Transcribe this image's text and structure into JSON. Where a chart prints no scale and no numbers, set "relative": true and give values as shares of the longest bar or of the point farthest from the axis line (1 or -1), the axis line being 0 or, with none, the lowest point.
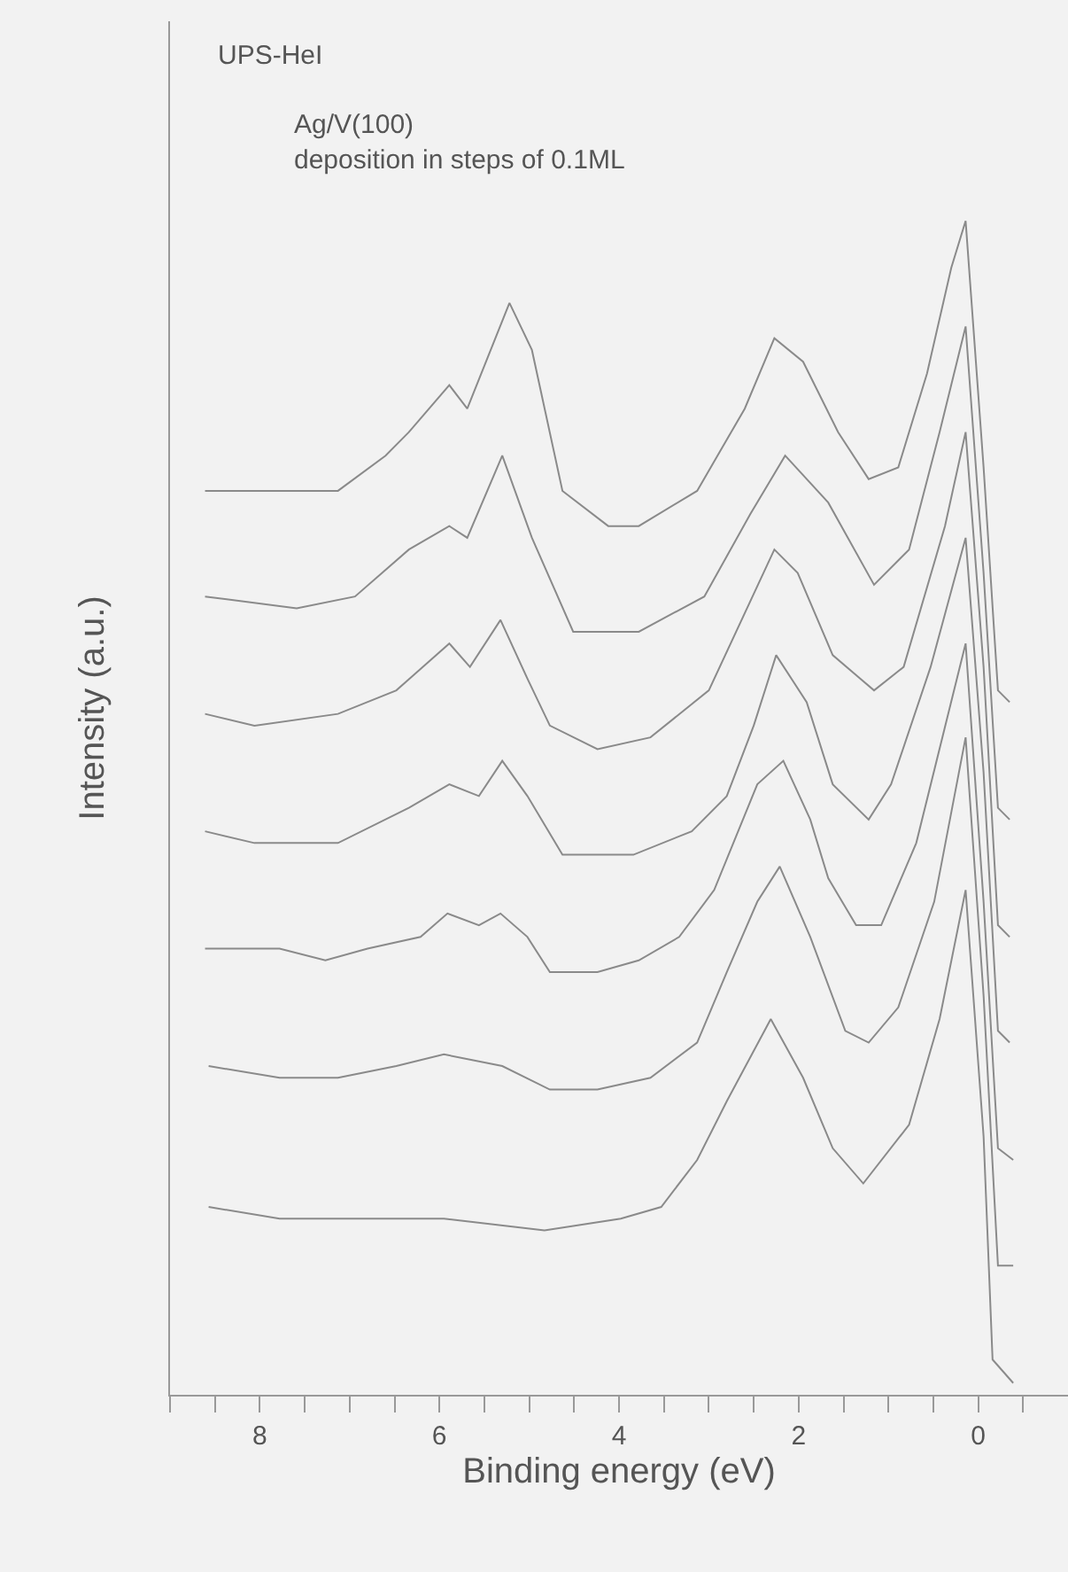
{
  "chart_data": {
    "type": "line",
    "relative": true,
    "xlabel": "Binding energy (eV)",
    "ylabel": "Intensity (a.u.)",
    "annotations": [
      "UPS-HeI",
      "Ag/V(100)",
      "deposition in steps of 0.1ML"
    ],
    "xlim": [
      9,
      -1
    ],
    "xticks": [
      {
        "value": 9,
        "label": null
      },
      {
        "value": 8.5,
        "label": null
      },
      8,
      {
        "value": 7.5,
        "label": null
      },
      {
        "value": 7,
        "label": null
      },
      {
        "value": 6.5,
        "label": null
      },
      6,
      {
        "value": 5.5,
        "label": null
      },
      {
        "value": 5,
        "label": null
      },
      {
        "value": 4.5,
        "label": null
      },
      4,
      {
        "value": 3.5,
        "label": null
      },
      {
        "value": 3,
        "label": null
      },
      {
        "value": 2.5,
        "label": null
      },
      2,
      {
        "value": 1.5,
        "label": null
      },
      {
        "value": 1,
        "label": null
      },
      {
        "value": 0.5,
        "label": null
      },
      0,
      {
        "value": -0.5,
        "label": null
      }
    ],
    "grid": false,
    "marker": "none",
    "line_style": "solid",
    "series": [
      {
        "color": "#8a8a8a",
        "x": [
          8.57,
          7.78,
          6.94,
          5.95,
          4.83,
          3.98,
          3.53,
          3.13,
          2.8,
          2.31,
          1.95,
          1.62,
          1.28,
          0.77,
          0.43,
          0.14,
          -0.06,
          -0.16,
          -0.39
        ],
        "values": [
          0.16,
          0.15,
          0.15,
          0.15,
          0.14,
          0.15,
          0.16,
          0.2,
          0.25,
          0.32,
          0.27,
          0.21,
          0.18,
          0.23,
          0.32,
          0.43,
          0.22,
          0.03,
          0.01
        ]
      },
      {
        "color": "#8a8a8a",
        "x": [
          8.57,
          7.78,
          7.13,
          6.48,
          5.95,
          5.3,
          4.77,
          4.24,
          3.65,
          3.13,
          2.8,
          2.46,
          2.21,
          1.87,
          1.48,
          1.22,
          0.89,
          0.49,
          0.14,
          -0.06,
          -0.22,
          -0.39
        ],
        "values": [
          0.28,
          0.27,
          0.27,
          0.28,
          0.29,
          0.28,
          0.26,
          0.26,
          0.27,
          0.3,
          0.36,
          0.42,
          0.45,
          0.39,
          0.31,
          0.3,
          0.33,
          0.42,
          0.56,
          0.34,
          0.11,
          0.11
        ]
      },
      {
        "color": "#8a8a8a",
        "x": [
          8.61,
          7.78,
          7.27,
          6.8,
          6.21,
          5.91,
          5.56,
          5.32,
          5.02,
          4.77,
          4.24,
          3.78,
          3.33,
          2.94,
          2.46,
          2.17,
          1.87,
          1.67,
          1.36,
          1.08,
          0.69,
          0.14,
          -0.06,
          -0.22,
          -0.39
        ],
        "values": [
          0.38,
          0.38,
          0.37,
          0.38,
          0.39,
          0.41,
          0.4,
          0.41,
          0.39,
          0.36,
          0.36,
          0.37,
          0.39,
          0.43,
          0.52,
          0.54,
          0.49,
          0.44,
          0.4,
          0.4,
          0.47,
          0.64,
          0.42,
          0.21,
          0.2
        ]
      },
      {
        "color": "#8a8a8a",
        "x": [
          8.61,
          8.06,
          7.13,
          6.34,
          5.89,
          5.56,
          5.3,
          5.02,
          4.63,
          4.37,
          3.84,
          3.19,
          2.8,
          2.5,
          2.25,
          1.91,
          1.62,
          1.22,
          0.97,
          0.53,
          0.14,
          -0.06,
          -0.22,
          -0.35
        ],
        "values": [
          0.48,
          0.47,
          0.47,
          0.5,
          0.52,
          0.51,
          0.54,
          0.51,
          0.46,
          0.46,
          0.46,
          0.48,
          0.51,
          0.57,
          0.63,
          0.59,
          0.52,
          0.49,
          0.52,
          0.62,
          0.73,
          0.53,
          0.31,
          0.3
        ]
      },
      {
        "color": "#8a8a8a",
        "x": [
          8.61,
          8.06,
          7.13,
          6.48,
          5.89,
          5.66,
          5.32,
          5.02,
          4.77,
          4.24,
          3.65,
          3.0,
          2.27,
          2.01,
          1.62,
          1.16,
          0.83,
          0.37,
          0.14,
          -0.06,
          -0.22,
          -0.35
        ],
        "values": [
          0.58,
          0.57,
          0.58,
          0.6,
          0.64,
          0.62,
          0.66,
          0.61,
          0.57,
          0.55,
          0.56,
          0.6,
          0.72,
          0.7,
          0.63,
          0.6,
          0.62,
          0.74,
          0.82,
          0.62,
          0.4,
          0.39
        ]
      },
      {
        "color": "#8a8a8a",
        "x": [
          8.61,
          7.59,
          6.94,
          6.34,
          5.89,
          5.69,
          5.3,
          4.97,
          4.51,
          4.12,
          3.78,
          3.05,
          2.54,
          2.15,
          1.67,
          1.16,
          0.77,
          0.43,
          0.14,
          -0.06,
          -0.22,
          -0.35
        ],
        "values": [
          0.68,
          0.67,
          0.68,
          0.72,
          0.74,
          0.73,
          0.8,
          0.73,
          0.65,
          0.65,
          0.65,
          0.68,
          0.75,
          0.8,
          0.76,
          0.69,
          0.72,
          0.82,
          0.91,
          0.7,
          0.5,
          0.49
        ]
      },
      {
        "color": "#8a8a8a",
        "x": [
          8.61,
          7.59,
          7.13,
          6.6,
          6.34,
          5.89,
          5.69,
          5.22,
          4.97,
          4.63,
          4.12,
          3.78,
          3.13,
          2.6,
          2.27,
          1.95,
          1.56,
          1.22,
          0.89,
          0.57,
          0.3,
          0.14,
          -0.06,
          -0.22,
          -0.35
        ],
        "values": [
          0.77,
          0.77,
          0.77,
          0.8,
          0.82,
          0.86,
          0.84,
          0.93,
          0.89,
          0.77,
          0.74,
          0.74,
          0.77,
          0.84,
          0.9,
          0.88,
          0.82,
          0.78,
          0.79,
          0.87,
          0.96,
          1.0,
          0.79,
          0.6,
          0.59
        ]
      }
    ]
  }
}
